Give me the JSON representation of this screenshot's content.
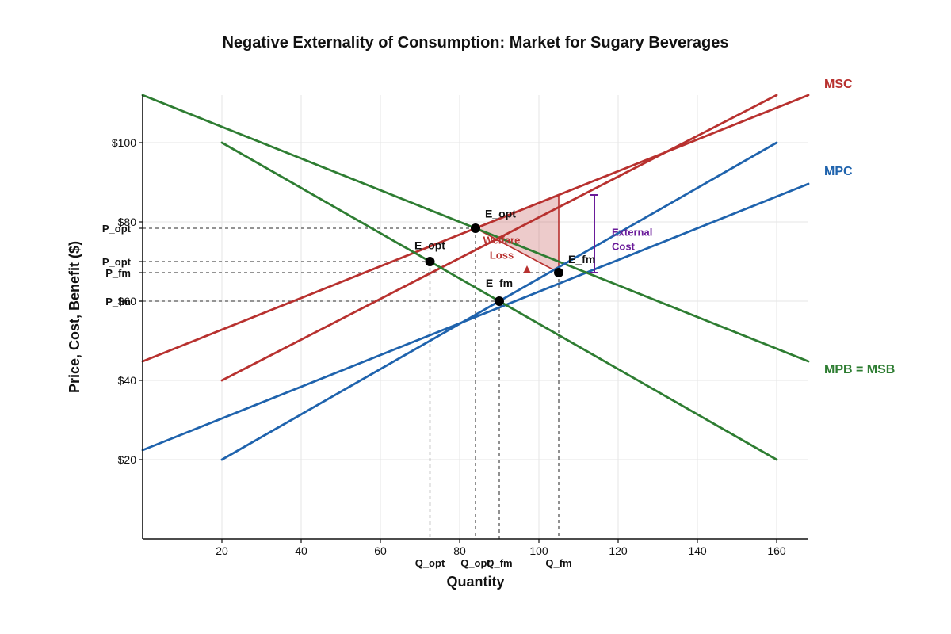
{
  "chart_data": {
    "type": "line",
    "title": "Negative Externality of Consumption: Market for Sugary Beverages",
    "xlabel": "Quantity",
    "ylabel": "Price, Cost, Benefit ($)",
    "xlim": [
      0,
      168
    ],
    "ylim": [
      0,
      112
    ],
    "x_ticks": [
      20,
      40,
      60,
      80,
      100,
      120,
      140,
      160
    ],
    "x_tick_labels": [
      "20",
      "40",
      "60",
      "80",
      "100",
      "120",
      "140",
      "160"
    ],
    "y_ticks": [
      20,
      40,
      60,
      80,
      100
    ],
    "y_tick_labels": [
      "$20",
      "$40",
      "$60",
      "$80",
      "$100"
    ],
    "grid": true,
    "series": [
      {
        "name": "MSC",
        "color": "#b8312f",
        "x": [
          0,
          168
        ],
        "y": [
          44.8,
          112
        ],
        "label_y": 115
      },
      {
        "name": "MPC",
        "color": "#1f63ad",
        "x": [
          0,
          168
        ],
        "y": [
          22.4,
          89.6
        ],
        "label_y": 93
      },
      {
        "name": "MPB = MSB",
        "color": "#2e7d32",
        "x": [
          0,
          168
        ],
        "y": [
          112,
          44.8
        ],
        "label_y": 43
      },
      {
        "name": "",
        "color": "#b8312f",
        "x": [
          20,
          160
        ],
        "y": [
          40,
          112
        ]
      },
      {
        "name": "",
        "color": "#1f63ad",
        "x": [
          20,
          160
        ],
        "y": [
          20,
          100
        ]
      },
      {
        "name": "",
        "color": "#2e7d32",
        "x": [
          20,
          160
        ],
        "y": [
          100,
          20
        ]
      }
    ],
    "points": [
      {
        "label": "E_opt",
        "x": 84,
        "y": 78.4,
        "lx": 84,
        "ly": 81.5,
        "anchor": "start",
        "dx": 3
      },
      {
        "label": "E_opt",
        "x": 72.5,
        "y": 70,
        "lx": 72.5,
        "ly": 73.5,
        "anchor": "middle",
        "dx": 0
      },
      {
        "label": "E_fm",
        "x": 90,
        "y": 60,
        "lx": 90,
        "ly": 64,
        "anchor": "middle",
        "dx": 0
      },
      {
        "label": "E_fm",
        "x": 105,
        "y": 67.2,
        "lx": 105,
        "ly": 70,
        "anchor": "start",
        "dx": 3
      }
    ],
    "x_refs": [
      {
        "label": "Q_opt",
        "x": 72.5,
        "y_top": 70
      },
      {
        "label": "Q_opt",
        "x": 84,
        "y_top": 78.4
      },
      {
        "label": "Q_fm",
        "x": 90,
        "y_top": 60
      },
      {
        "label": "Q_fm",
        "x": 105,
        "y_top": 67.2
      }
    ],
    "y_refs": [
      {
        "label": "P_opt",
        "y": 78.4,
        "x_end": 84
      },
      {
        "label": "P_opt",
        "y": 70,
        "x_end": 72.5
      },
      {
        "label": "P_fm",
        "y": 67.2,
        "x_end": 105
      },
      {
        "label": "P_fm",
        "y": 60,
        "x_end": 90
      }
    ],
    "welfare_loss": {
      "label_lines": [
        "Welfare",
        "Loss"
      ],
      "color": "#b8312f",
      "polygon": [
        [
          84,
          78.4
        ],
        [
          105,
          86.8
        ],
        [
          105,
          67.2
        ]
      ],
      "label_at": [
        97,
        74.5
      ],
      "marker_at": [
        97,
        68
      ]
    },
    "external_cost": {
      "label_lines": [
        "External",
        "Cost"
      ],
      "color": "#6a1b9a",
      "x": 114,
      "y_from": 67.2,
      "y_to": 86.8,
      "label_at": [
        118,
        76.5
      ]
    }
  }
}
